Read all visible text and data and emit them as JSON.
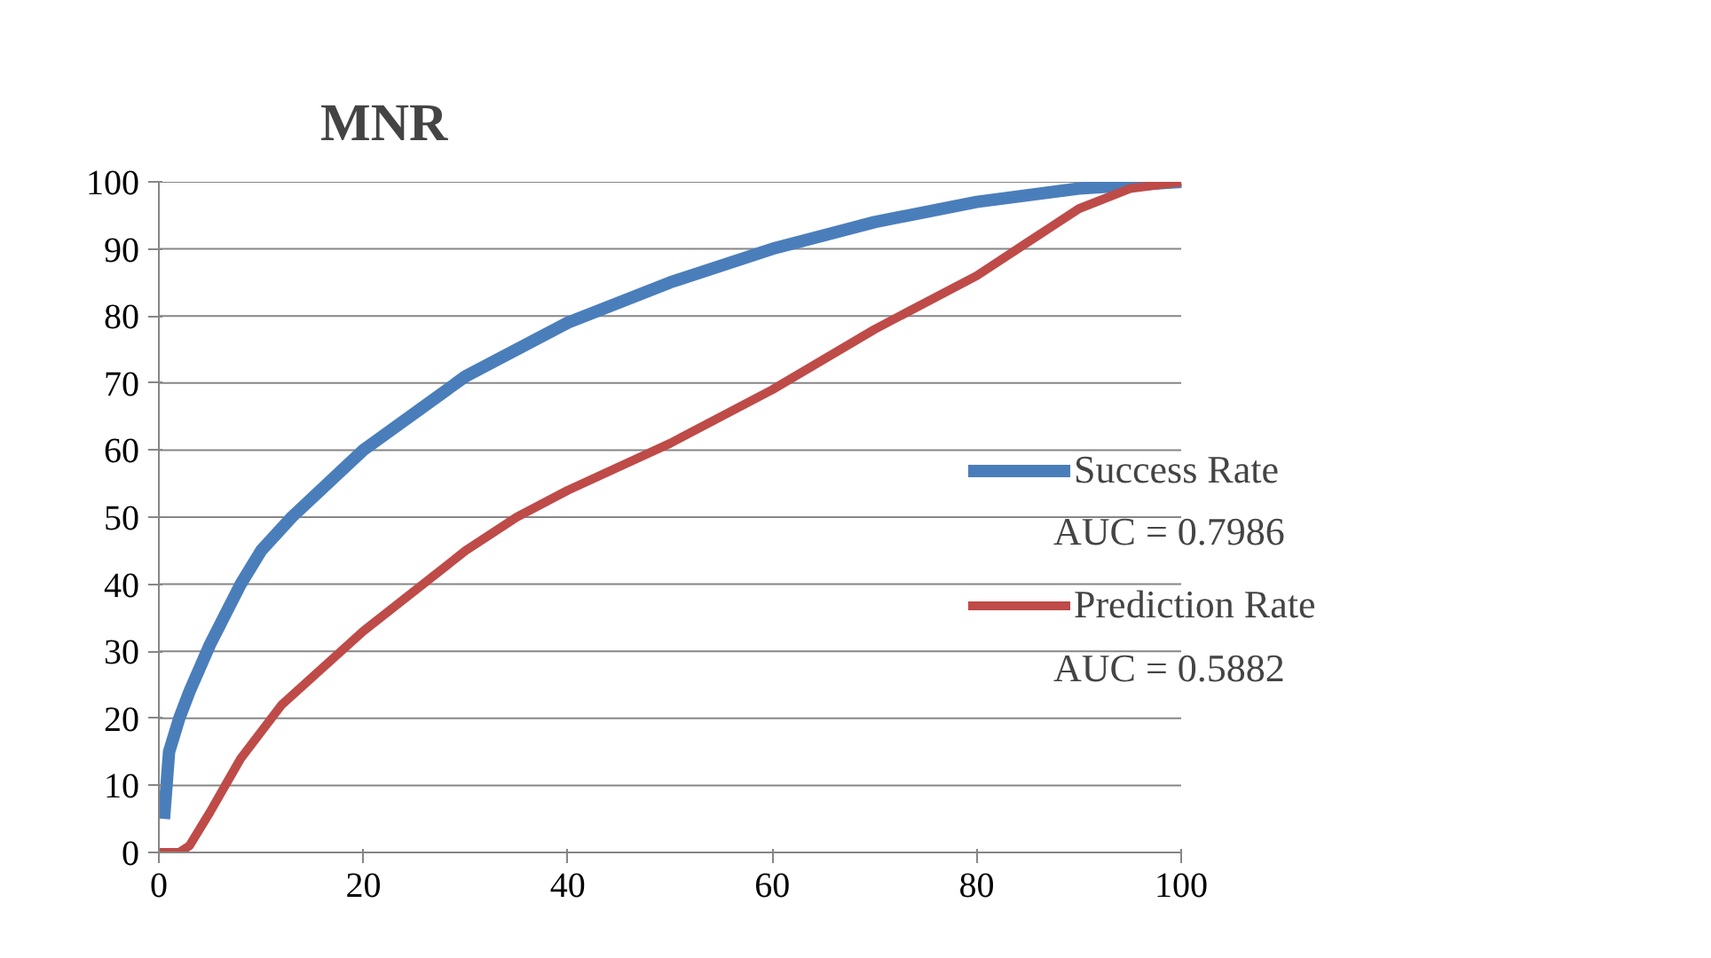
{
  "chart_data": {
    "type": "line",
    "title": "MNR",
    "series": [
      {
        "name": "Success Rate",
        "color": "#4a7ebb",
        "x": [
          0.5,
          1,
          2,
          3,
          5,
          8,
          10,
          13,
          20,
          30,
          40,
          50,
          60,
          70,
          80,
          90,
          100
        ],
        "values": [
          5,
          15,
          20,
          24,
          31,
          40,
          45,
          50,
          60,
          71,
          79,
          85,
          90,
          94,
          97,
          99,
          100
        ]
      },
      {
        "name": "Prediction Rate",
        "color": "#be4b48",
        "x": [
          0,
          2,
          3,
          5,
          8,
          12,
          20,
          30,
          35,
          40,
          50,
          60,
          70,
          80,
          85,
          90,
          95,
          100
        ],
        "values": [
          0,
          0,
          1,
          6,
          14,
          22,
          33,
          45,
          50,
          54,
          61,
          69,
          78,
          86,
          91,
          96,
          99,
          100
        ]
      }
    ],
    "annotations": [
      "AUC = 0.7986",
      "AUC = 0.5882"
    ],
    "xlim": [
      0,
      100
    ],
    "xticks": [
      0,
      20,
      40,
      60,
      80,
      100
    ],
    "ylim": [
      0,
      100
    ],
    "yticks": [
      0,
      10,
      20,
      30,
      40,
      50,
      60,
      70,
      80,
      90,
      100
    ],
    "grid": "y",
    "legend": "right",
    "marker": "none",
    "line_style": "solid"
  }
}
